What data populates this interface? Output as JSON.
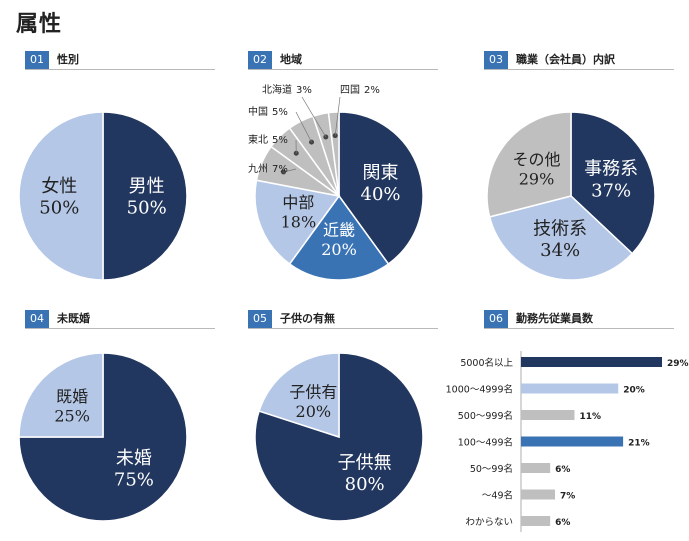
{
  "page_title": "属性",
  "colors": {
    "navy": "#22375f",
    "light_blue": "#b4c7e7",
    "mid_blue": "#3a73b4",
    "gray": "#bfbfbf",
    "header_blue": "#3a73b4"
  },
  "sections": [
    {
      "num": "01",
      "title": "性別"
    },
    {
      "num": "02",
      "title": "地域"
    },
    {
      "num": "03",
      "title": "職業（会社員）内訳"
    },
    {
      "num": "04",
      "title": "未既婚"
    },
    {
      "num": "05",
      "title": "子供の有無"
    },
    {
      "num": "06",
      "title": "勤務先従業員数"
    }
  ],
  "chart_data": [
    {
      "type": "pie",
      "title": "性別",
      "slices": [
        {
          "label": "男性",
          "value": 50,
          "pct_text": "50%",
          "color": "#22375f"
        },
        {
          "label": "女性",
          "value": 50,
          "pct_text": "50%",
          "color": "#b4c7e7"
        }
      ]
    },
    {
      "type": "pie",
      "title": "地域",
      "slices": [
        {
          "label": "関東",
          "value": 40,
          "pct_text": "40%",
          "color": "#22375f"
        },
        {
          "label": "近畿",
          "value": 20,
          "pct_text": "20%",
          "color": "#3a73b4"
        },
        {
          "label": "中部",
          "value": 18,
          "pct_text": "18%",
          "color": "#b4c7e7"
        },
        {
          "label": "九州",
          "value": 7,
          "pct_text": "7%",
          "color": "#bfbfbf"
        },
        {
          "label": "東北",
          "value": 5,
          "pct_text": "5%",
          "color": "#bfbfbf"
        },
        {
          "label": "中国",
          "value": 5,
          "pct_text": "5%",
          "color": "#bfbfbf"
        },
        {
          "label": "北海道",
          "value": 3,
          "pct_text": "3%",
          "color": "#bfbfbf"
        },
        {
          "label": "四国",
          "value": 2,
          "pct_text": "2%",
          "color": "#bfbfbf"
        }
      ]
    },
    {
      "type": "pie",
      "title": "職業（会社員）内訳",
      "slices": [
        {
          "label": "事務系",
          "value": 37,
          "pct_text": "37%",
          "color": "#22375f"
        },
        {
          "label": "技術系",
          "value": 34,
          "pct_text": "34%",
          "color": "#b4c7e7"
        },
        {
          "label": "その他",
          "value": 29,
          "pct_text": "29%",
          "color": "#bfbfbf"
        }
      ]
    },
    {
      "type": "pie",
      "title": "未既婚",
      "slices": [
        {
          "label": "未婚",
          "value": 75,
          "pct_text": "75%",
          "color": "#22375f"
        },
        {
          "label": "既婚",
          "value": 25,
          "pct_text": "25%",
          "color": "#b4c7e7"
        }
      ]
    },
    {
      "type": "pie",
      "title": "子供の有無",
      "slices": [
        {
          "label": "子供無",
          "value": 80,
          "pct_text": "80%",
          "color": "#22375f"
        },
        {
          "label": "子供有",
          "value": 20,
          "pct_text": "20%",
          "color": "#b4c7e7"
        }
      ]
    },
    {
      "type": "bar",
      "orientation": "horizontal",
      "title": "勤務先従業員数",
      "categories": [
        "5000名以上",
        "1000～4999名",
        "500～999名",
        "100～499名",
        "50～99名",
        "～49名",
        "わからない"
      ],
      "values": [
        29,
        20,
        11,
        21,
        6,
        7,
        6
      ],
      "value_texts": [
        "29%",
        "20%",
        "11%",
        "21%",
        "6%",
        "7%",
        "6%"
      ],
      "colors": [
        "#22375f",
        "#b4c7e7",
        "#bfbfbf",
        "#3a73b4",
        "#bfbfbf",
        "#bfbfbf",
        "#bfbfbf"
      ],
      "xlim": [
        0,
        29
      ]
    }
  ]
}
